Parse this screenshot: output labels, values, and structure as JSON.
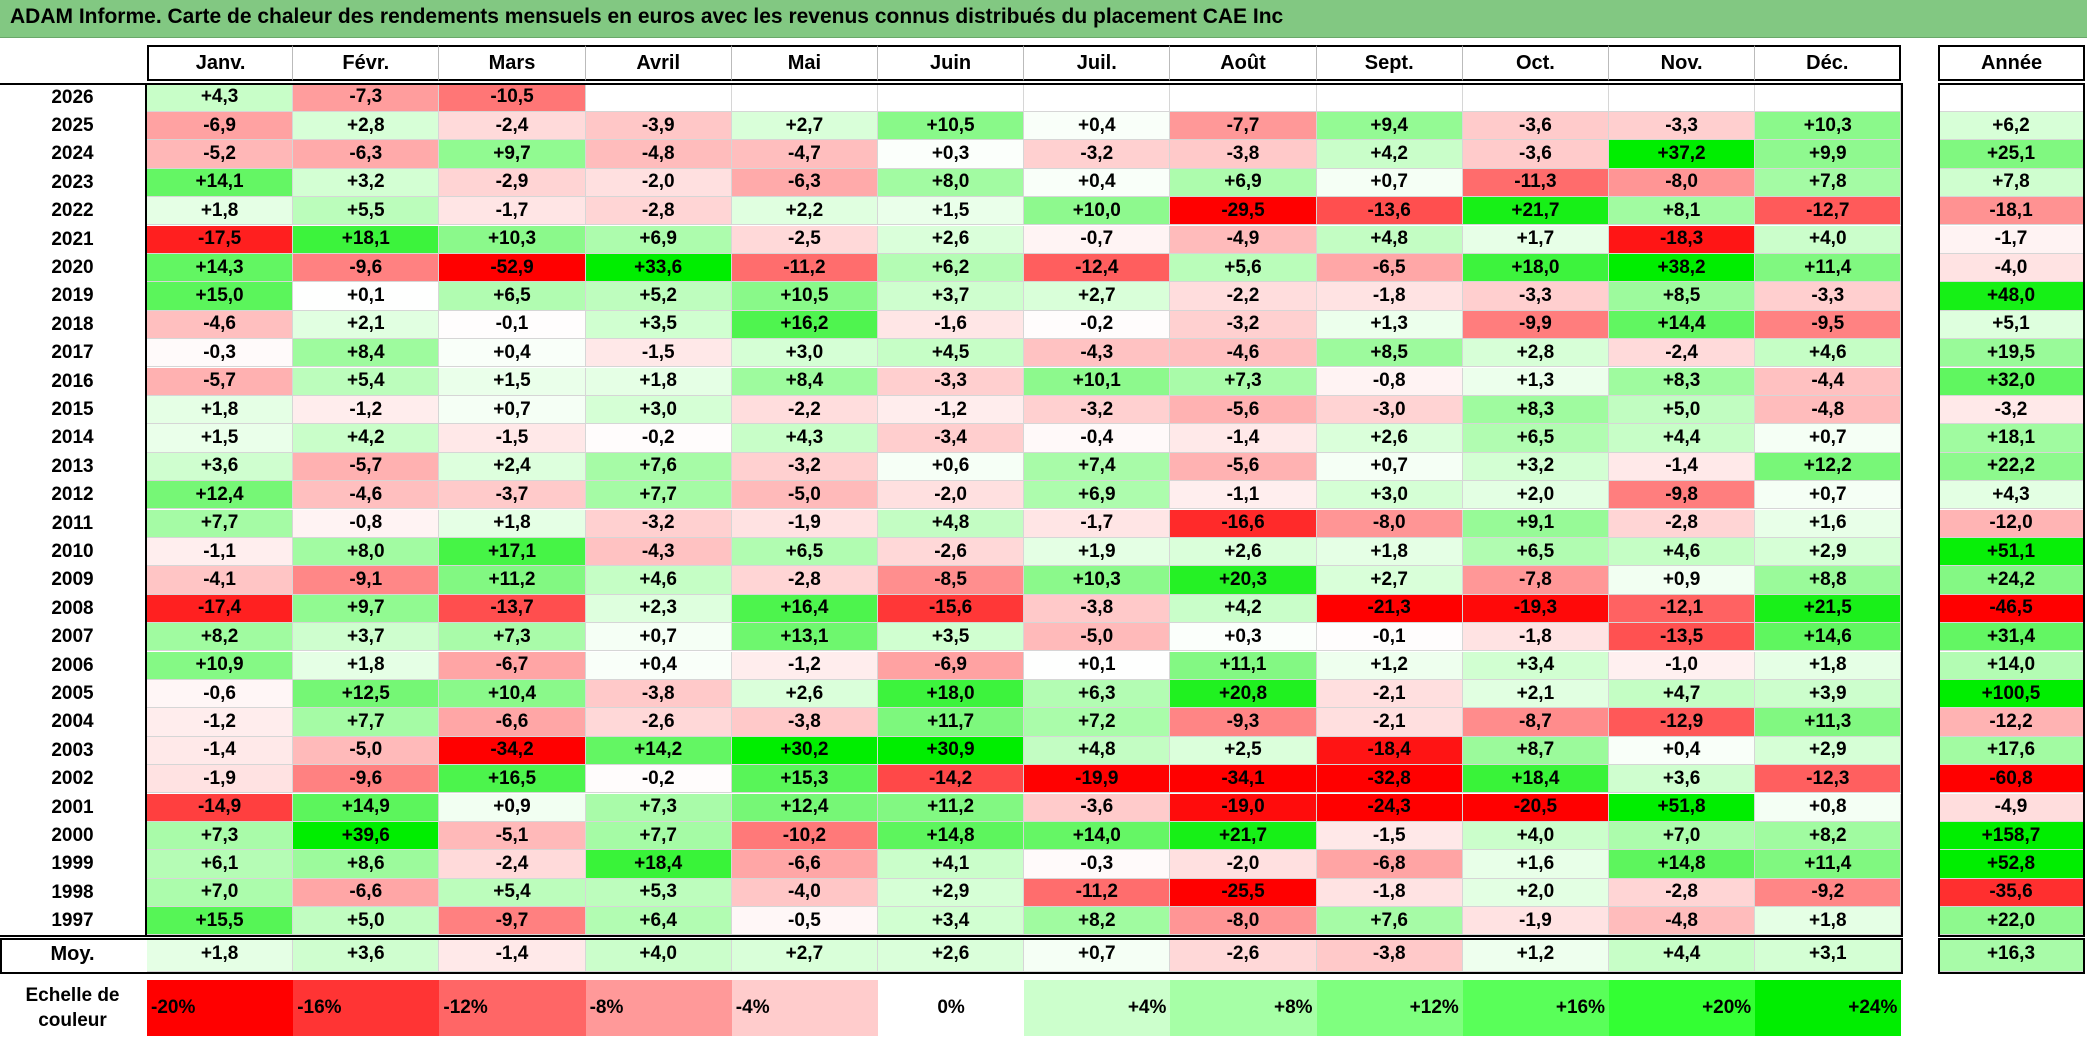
{
  "title": "ADAM Informe. Carte de chaleur des rendements mensuels en euros avec les revenus connus distribués du placement CAE Inc",
  "chart_data": {
    "type": "heatmap",
    "months": [
      "Janv.",
      "Févr.",
      "Mars",
      "Avril",
      "Mai",
      "Juin",
      "Juil.",
      "Août",
      "Sept.",
      "Oct.",
      "Nov.",
      "Déc."
    ],
    "annual_label": "Année",
    "mean_label": "Moy.",
    "rows": [
      {
        "year": "2026",
        "values": [
          "+4,3",
          "-7,3",
          "-10,5",
          "",
          "",
          "",
          "",
          "",
          "",
          "",
          "",
          ""
        ],
        "annual": ""
      },
      {
        "year": "2025",
        "values": [
          "-6,9",
          "+2,8",
          "-2,4",
          "-3,9",
          "+2,7",
          "+10,5",
          "+0,4",
          "-7,7",
          "+9,4",
          "-3,6",
          "-3,3",
          "+10,3"
        ],
        "annual": "+6,2"
      },
      {
        "year": "2024",
        "values": [
          "-5,2",
          "-6,3",
          "+9,7",
          "-4,8",
          "-4,7",
          "+0,3",
          "-3,2",
          "-3,8",
          "+4,2",
          "-3,6",
          "+37,2",
          "+9,9"
        ],
        "annual": "+25,1"
      },
      {
        "year": "2023",
        "values": [
          "+14,1",
          "+3,2",
          "-2,9",
          "-2,0",
          "-6,3",
          "+8,0",
          "+0,4",
          "+6,9",
          "+0,7",
          "-11,3",
          "-8,0",
          "+7,8"
        ],
        "annual": "+7,8"
      },
      {
        "year": "2022",
        "values": [
          "+1,8",
          "+5,5",
          "-1,7",
          "-2,8",
          "+2,2",
          "+1,5",
          "+10,0",
          "-29,5",
          "-13,6",
          "+21,7",
          "+8,1",
          "-12,7"
        ],
        "annual": "-18,1"
      },
      {
        "year": "2021",
        "values": [
          "-17,5",
          "+18,1",
          "+10,3",
          "+6,9",
          "-2,5",
          "+2,6",
          "-0,7",
          "-4,9",
          "+4,8",
          "+1,7",
          "-18,3",
          "+4,0"
        ],
        "annual": "-1,7"
      },
      {
        "year": "2020",
        "values": [
          "+14,3",
          "-9,6",
          "-52,9",
          "+33,6",
          "-11,2",
          "+6,2",
          "-12,4",
          "+5,6",
          "-6,5",
          "+18,0",
          "+38,2",
          "+11,4"
        ],
        "annual": "-4,0"
      },
      {
        "year": "2019",
        "values": [
          "+15,0",
          "+0,1",
          "+6,5",
          "+5,2",
          "+10,5",
          "+3,7",
          "+2,7",
          "-2,2",
          "-1,8",
          "-3,3",
          "+8,5",
          "-3,3"
        ],
        "annual": "+48,0"
      },
      {
        "year": "2018",
        "values": [
          "-4,6",
          "+2,1",
          "-0,1",
          "+3,5",
          "+16,2",
          "-1,6",
          "-0,2",
          "-3,2",
          "+1,3",
          "-9,9",
          "+14,4",
          "-9,5"
        ],
        "annual": "+5,1"
      },
      {
        "year": "2017",
        "values": [
          "-0,3",
          "+8,4",
          "+0,4",
          "-1,5",
          "+3,0",
          "+4,5",
          "-4,3",
          "-4,6",
          "+8,5",
          "+2,8",
          "-2,4",
          "+4,6"
        ],
        "annual": "+19,5"
      },
      {
        "year": "2016",
        "values": [
          "-5,7",
          "+5,4",
          "+1,5",
          "+1,8",
          "+8,4",
          "-3,3",
          "+10,1",
          "+7,3",
          "-0,8",
          "+1,3",
          "+8,3",
          "-4,4"
        ],
        "annual": "+32,0"
      },
      {
        "year": "2015",
        "values": [
          "+1,8",
          "-1,2",
          "+0,7",
          "+3,0",
          "-2,2",
          "-1,2",
          "-3,2",
          "-5,6",
          "-3,0",
          "+8,3",
          "+5,0",
          "-4,8"
        ],
        "annual": "-3,2"
      },
      {
        "year": "2014",
        "values": [
          "+1,5",
          "+4,2",
          "-1,5",
          "-0,2",
          "+4,3",
          "-3,4",
          "-0,4",
          "-1,4",
          "+2,6",
          "+6,5",
          "+4,4",
          "+0,7"
        ],
        "annual": "+18,1"
      },
      {
        "year": "2013",
        "values": [
          "+3,6",
          "-5,7",
          "+2,4",
          "+7,6",
          "-3,2",
          "+0,6",
          "+7,4",
          "-5,6",
          "+0,7",
          "+3,2",
          "-1,4",
          "+12,2"
        ],
        "annual": "+22,2"
      },
      {
        "year": "2012",
        "values": [
          "+12,4",
          "-4,6",
          "-3,7",
          "+7,7",
          "-5,0",
          "-2,0",
          "+6,9",
          "-1,1",
          "+3,0",
          "+2,0",
          "-9,8",
          "+0,7"
        ],
        "annual": "+4,3"
      },
      {
        "year": "2011",
        "values": [
          "+7,7",
          "-0,8",
          "+1,8",
          "-3,2",
          "-1,9",
          "+4,8",
          "-1,7",
          "-16,6",
          "-8,0",
          "+9,1",
          "-2,8",
          "+1,6"
        ],
        "annual": "-12,0"
      },
      {
        "year": "2010",
        "values": [
          "-1,1",
          "+8,0",
          "+17,1",
          "-4,3",
          "+6,5",
          "-2,6",
          "+1,9",
          "+2,6",
          "+1,8",
          "+6,5",
          "+4,6",
          "+2,9"
        ],
        "annual": "+51,1"
      },
      {
        "year": "2009",
        "values": [
          "-4,1",
          "-9,1",
          "+11,2",
          "+4,6",
          "-2,8",
          "-8,5",
          "+10,3",
          "+20,3",
          "+2,7",
          "-7,8",
          "+0,9",
          "+8,8"
        ],
        "annual": "+24,2"
      },
      {
        "year": "2008",
        "values": [
          "-17,4",
          "+9,7",
          "-13,7",
          "+2,3",
          "+16,4",
          "-15,6",
          "-3,8",
          "+4,2",
          "-21,3",
          "-19,3",
          "-12,1",
          "+21,5"
        ],
        "annual": "-46,5"
      },
      {
        "year": "2007",
        "values": [
          "+8,2",
          "+3,7",
          "+7,3",
          "+0,7",
          "+13,1",
          "+3,5",
          "-5,0",
          "+0,3",
          "-0,1",
          "-1,8",
          "-13,5",
          "+14,6"
        ],
        "annual": "+31,4"
      },
      {
        "year": "2006",
        "values": [
          "+10,9",
          "+1,8",
          "-6,7",
          "+0,4",
          "-1,2",
          "-6,9",
          "+0,1",
          "+11,1",
          "+1,2",
          "+3,4",
          "-1,0",
          "+1,8"
        ],
        "annual": "+14,0"
      },
      {
        "year": "2005",
        "values": [
          "-0,6",
          "+12,5",
          "+10,4",
          "-3,8",
          "+2,6",
          "+18,0",
          "+6,3",
          "+20,8",
          "-2,1",
          "+2,1",
          "+4,7",
          "+3,9"
        ],
        "annual": "+100,5"
      },
      {
        "year": "2004",
        "values": [
          "-1,2",
          "+7,7",
          "-6,6",
          "-2,6",
          "-3,8",
          "+11,7",
          "+7,2",
          "-9,3",
          "-2,1",
          "-8,7",
          "-12,9",
          "+11,3"
        ],
        "annual": "-12,2"
      },
      {
        "year": "2003",
        "values": [
          "-1,4",
          "-5,0",
          "-34,2",
          "+14,2",
          "+30,2",
          "+30,9",
          "+4,8",
          "+2,5",
          "-18,4",
          "+8,7",
          "+0,4",
          "+2,9"
        ],
        "annual": "+17,6"
      },
      {
        "year": "2002",
        "values": [
          "-1,9",
          "-9,6",
          "+16,5",
          "-0,2",
          "+15,3",
          "-14,2",
          "-19,9",
          "-34,1",
          "-32,8",
          "+18,4",
          "+3,6",
          "-12,3"
        ],
        "annual": "-60,8"
      },
      {
        "year": "2001",
        "values": [
          "-14,9",
          "+14,9",
          "+0,9",
          "+7,3",
          "+12,4",
          "+11,2",
          "-3,6",
          "-19,0",
          "-24,3",
          "-20,5",
          "+51,8",
          "+0,8"
        ],
        "annual": "-4,9"
      },
      {
        "year": "2000",
        "values": [
          "+7,3",
          "+39,6",
          "-5,1",
          "+7,7",
          "-10,2",
          "+14,8",
          "+14,0",
          "+21,7",
          "-1,5",
          "+4,0",
          "+7,0",
          "+8,2"
        ],
        "annual": "+158,7"
      },
      {
        "year": "1999",
        "values": [
          "+6,1",
          "+8,6",
          "-2,4",
          "+18,4",
          "-6,6",
          "+4,1",
          "-0,3",
          "-2,0",
          "-6,8",
          "+1,6",
          "+14,8",
          "+11,4"
        ],
        "annual": "+52,8"
      },
      {
        "year": "1998",
        "values": [
          "+7,0",
          "-6,6",
          "+5,4",
          "+5,3",
          "-4,0",
          "+2,9",
          "-11,2",
          "-25,5",
          "-1,8",
          "+2,0",
          "-2,8",
          "-9,2"
        ],
        "annual": "-35,6"
      },
      {
        "year": "1997",
        "values": [
          "+15,5",
          "+5,0",
          "-9,7",
          "+6,4",
          "-0,5",
          "+3,4",
          "+8,2",
          "-8,0",
          "+7,6",
          "-1,9",
          "-4,8",
          "+1,8"
        ],
        "annual": "+22,0"
      }
    ],
    "mean": {
      "values": [
        "+1,8",
        "+3,6",
        "-1,4",
        "+4,0",
        "+2,7",
        "+2,6",
        "+0,7",
        "-2,6",
        "-3,8",
        "+1,2",
        "+4,4",
        "+3,1"
      ],
      "annual": "+16,3"
    },
    "scale": {
      "label": "Echelle de couleur",
      "steps": [
        "-20%",
        "-16%",
        "-12%",
        "-8%",
        "-4%",
        "0%",
        "+4%",
        "+8%",
        "+12%",
        "+16%",
        "+20%",
        "+24%"
      ],
      "colors": [
        "#ff0000",
        "#ff3434",
        "#ff6666",
        "#ff9999",
        "#ffcccc",
        "#ffffff",
        "#ccffcc",
        "#a6ffa6",
        "#7fff7f",
        "#59ff59",
        "#33ff33",
        "#00ee00"
      ]
    }
  }
}
